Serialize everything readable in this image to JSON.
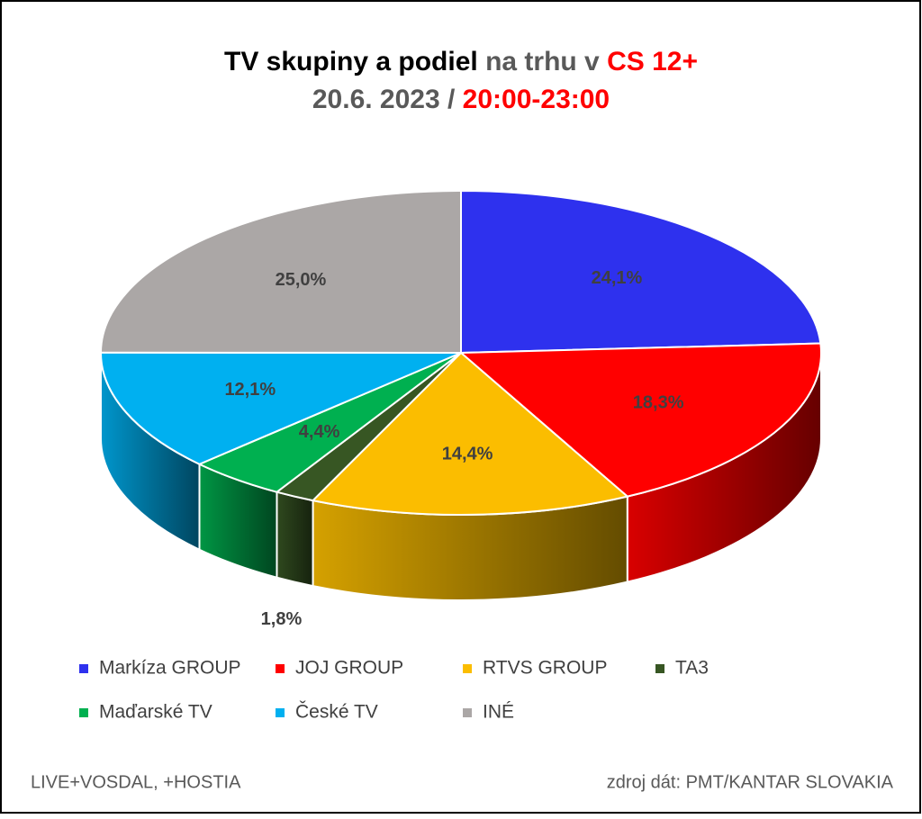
{
  "chart_data": {
    "type": "pie3d",
    "title": [
      {
        "text": "TV skupiny a podiel",
        "color": "#000000"
      },
      {
        "text": "na trhu v",
        "color": "#595959"
      },
      {
        "text": "CS 12+",
        "color": "#ff0000"
      }
    ],
    "subtitle": [
      {
        "text": "20.6. 2023 /",
        "color": "#595959"
      },
      {
        "text": "20:00-23:00",
        "color": "#ff0000"
      }
    ],
    "categories": [
      "Markíza GROUP",
      "JOJ GROUP",
      "RTVS GROUP",
      "TA3",
      "Maďarské  TV",
      "České  TV",
      "INÉ"
    ],
    "values": [
      24.1,
      18.3,
      14.4,
      1.8,
      4.4,
      12.1,
      25.0
    ],
    "value_labels": [
      "24,1%",
      "18,3%",
      "14,4%",
      "1,8%",
      "4,4%",
      "12,1%",
      "25,0%"
    ],
    "colors": [
      "#2e31ee",
      "#ff0000",
      "#fbbd00",
      "#375623",
      "#00b050",
      "#00b0f0",
      "#aba7a6"
    ],
    "legend": "bottom",
    "notes": [
      "LIVE+VOSDAL, +HOSTIA",
      "zdroj dát: PMT/KANTAR SLOVAKIA"
    ]
  }
}
